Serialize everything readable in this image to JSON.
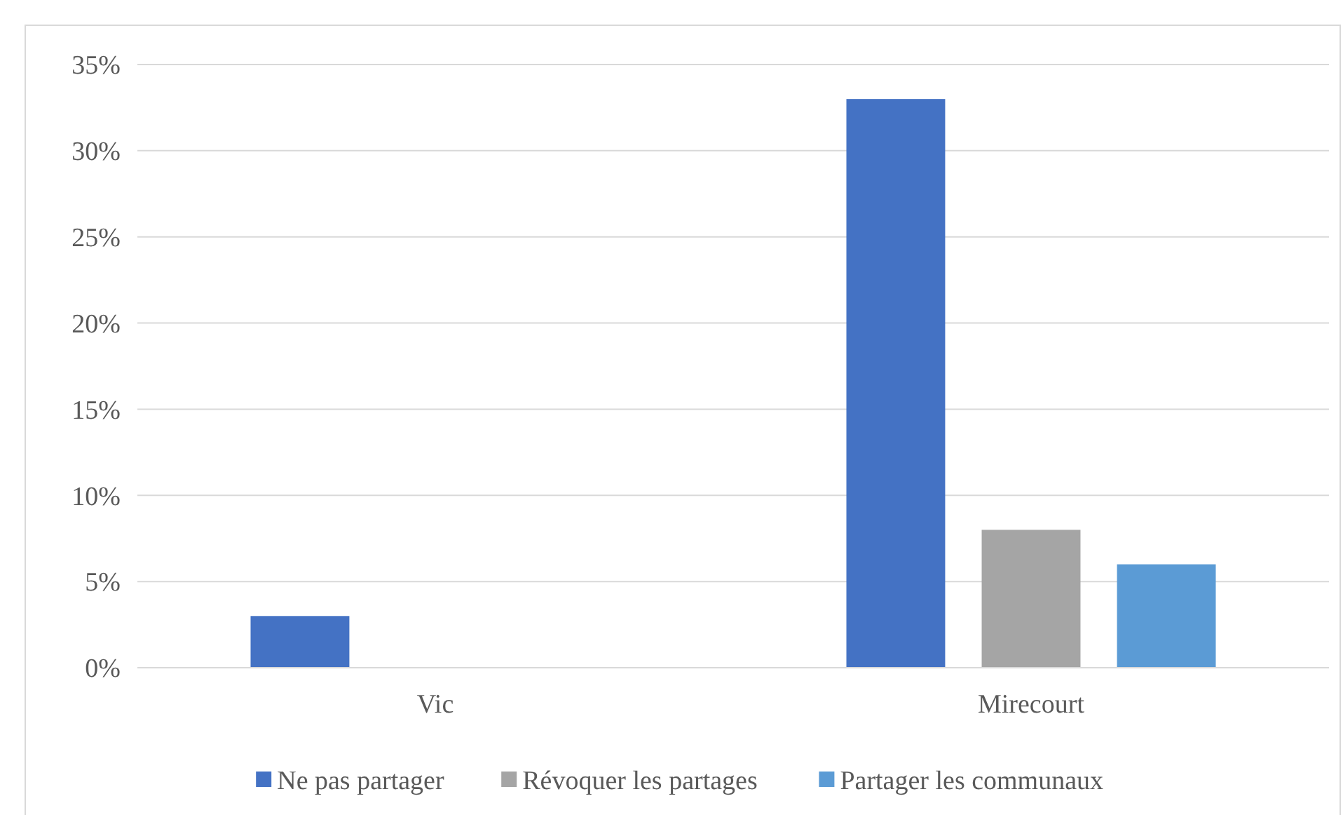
{
  "chart_data": {
    "type": "bar",
    "categories": [
      "Vic",
      "Mirecourt"
    ],
    "series": [
      {
        "name": "Ne pas partager",
        "color": "#4472c4",
        "values": [
          3,
          33
        ]
      },
      {
        "name": "Révoquer les partages",
        "color": "#a5a5a5",
        "values": [
          0,
          8
        ]
      },
      {
        "name": "Partager les communaux",
        "color": "#5b9bd5",
        "values": [
          0,
          6
        ]
      }
    ],
    "ylim": [
      0,
      35
    ],
    "yticks": [
      {
        "value": 0,
        "label": "0%"
      },
      {
        "value": 5,
        "label": "5%"
      },
      {
        "value": 10,
        "label": "10%"
      },
      {
        "value": 15,
        "label": "15%"
      },
      {
        "value": 20,
        "label": "20%"
      },
      {
        "value": 25,
        "label": "25%"
      },
      {
        "value": 30,
        "label": "30%"
      },
      {
        "value": 35,
        "label": "35%"
      }
    ],
    "grid": "y",
    "legend": "bottom"
  }
}
